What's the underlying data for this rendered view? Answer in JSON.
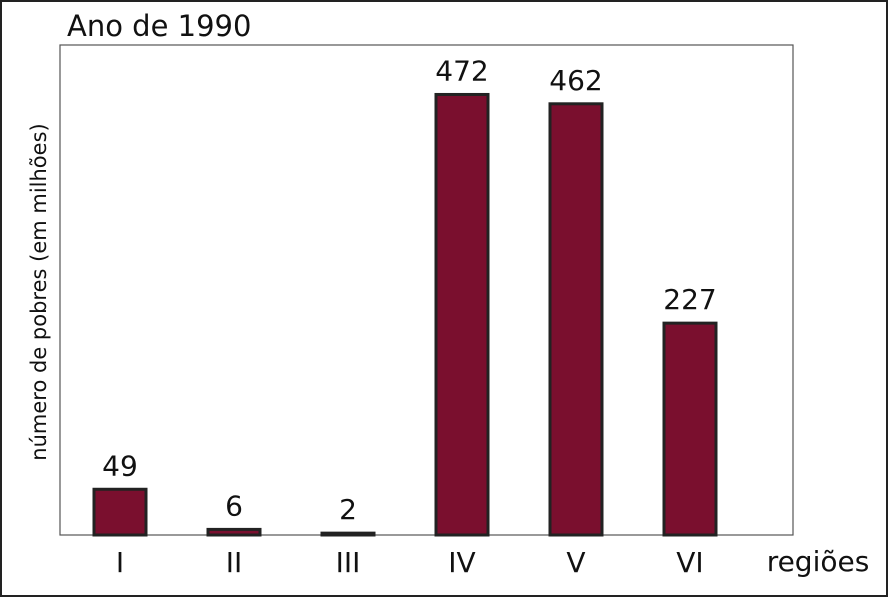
{
  "chart_data": {
    "type": "bar",
    "title": "Ano de 1990",
    "y_label": "número de pobres (em milhões)",
    "x_label": "regiões",
    "categories": [
      "I",
      "II",
      "III",
      "IV",
      "V",
      "VI"
    ],
    "values": [
      49,
      6,
      2,
      472,
      462,
      227
    ],
    "color": "#7a0f2e",
    "ylim": [
      0,
      525
    ]
  }
}
